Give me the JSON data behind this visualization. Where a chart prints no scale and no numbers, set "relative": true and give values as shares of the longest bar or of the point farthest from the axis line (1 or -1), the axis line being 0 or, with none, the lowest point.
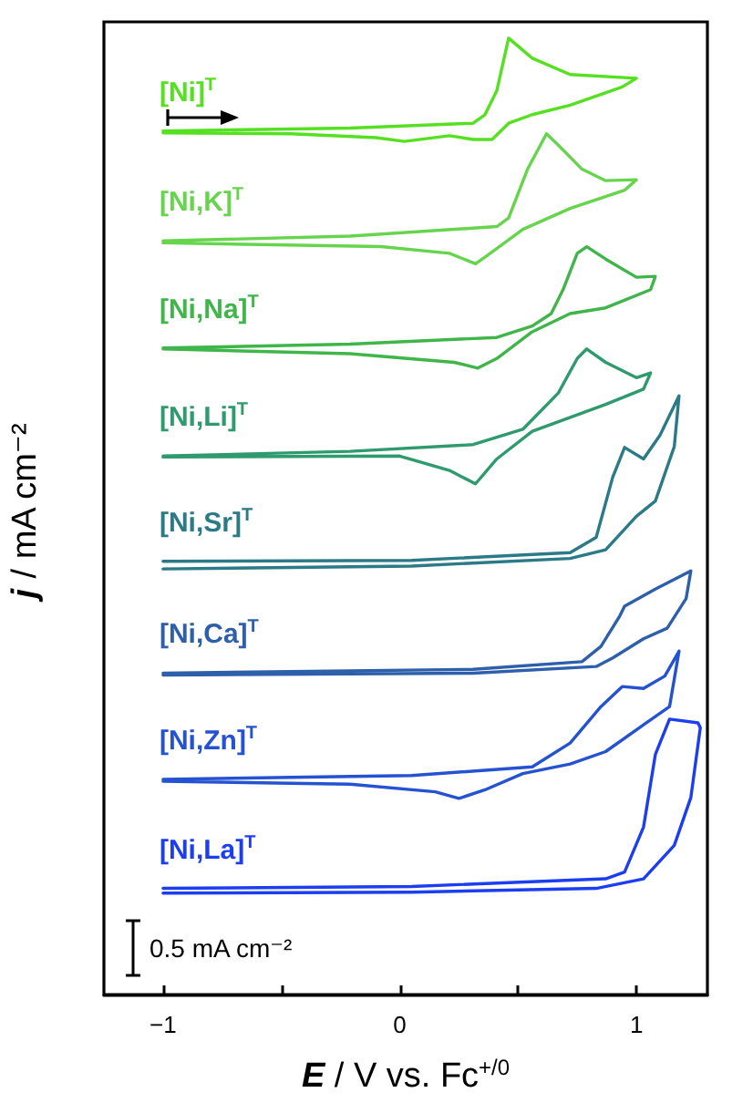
{
  "chart_data": {
    "type": "line",
    "relative": true,
    "xlabel": "E / V vs. Fc$^{+/0}$",
    "ylabel": "j / mA cm⁻²",
    "xlim": [
      -1.25,
      1.3
    ],
    "xticks": [
      -1,
      {
        "value": -0.5,
        "label": null
      },
      0,
      {
        "value": 0.5,
        "label": null
      },
      1
    ],
    "tick_labels": "x",
    "grid": false,
    "legend": false,
    "marker": "none",
    "annotations": [
      "0.5 mA cm⁻²"
    ],
    "series": [
      {
        "name": "[Ni]$^{T}$",
        "color": "#55e022",
        "x": [
          -1.0,
          -0.21,
          0.31,
          0.36,
          0.41,
          0.44,
          0.46,
          0.56,
          0.72,
          1.0,
          0.94,
          0.72,
          0.56,
          0.46,
          0.39,
          0.31,
          0.21,
          0.02,
          -0.1,
          -0.46,
          -1.0
        ],
        "values": [
          0.903,
          0.906,
          0.911,
          0.92,
          0.945,
          0.978,
          1.0,
          0.979,
          0.962,
          0.958,
          0.949,
          0.93,
          0.92,
          0.911,
          0.894,
          0.894,
          0.898,
          0.892,
          0.896,
          0.9,
          0.901
        ]
      },
      {
        "name": "[Ni,K]$^{T}$",
        "color": "#66d44c",
        "x": [
          -1.0,
          -0.21,
          0.41,
          0.46,
          0.54,
          0.62,
          0.67,
          0.77,
          0.87,
          1.0,
          0.95,
          0.72,
          0.52,
          0.36,
          0.32,
          0.21,
          -0.08,
          -1.0
        ],
        "values": [
          0.788,
          0.793,
          0.803,
          0.812,
          0.863,
          0.9,
          0.888,
          0.863,
          0.851,
          0.852,
          0.841,
          0.822,
          0.8,
          0.771,
          0.764,
          0.775,
          0.782,
          0.786
        ]
      },
      {
        "name": "[Ni,Na]$^{T}$",
        "color": "#3fb54a",
        "x": [
          -1.0,
          -0.21,
          0.41,
          0.56,
          0.64,
          0.69,
          0.75,
          0.79,
          0.87,
          1.0,
          1.08,
          1.06,
          0.87,
          0.72,
          0.56,
          0.41,
          0.33,
          0.23,
          -0.21,
          -1.0
        ],
        "values": [
          0.676,
          0.68,
          0.687,
          0.699,
          0.712,
          0.737,
          0.775,
          0.782,
          0.769,
          0.75,
          0.751,
          0.737,
          0.718,
          0.712,
          0.693,
          0.665,
          0.655,
          0.661,
          0.67,
          0.675
        ]
      },
      {
        "name": "[Ni,Li]$^{T}$",
        "color": "#2f9a6e",
        "x": [
          -1.0,
          -0.21,
          0.31,
          0.52,
          0.67,
          0.75,
          0.79,
          0.87,
          1.0,
          1.06,
          1.03,
          0.87,
          0.56,
          0.41,
          0.32,
          0.21,
          0.0,
          -1.0
        ],
        "values": [
          0.563,
          0.568,
          0.575,
          0.591,
          0.629,
          0.665,
          0.675,
          0.661,
          0.645,
          0.65,
          0.633,
          0.617,
          0.589,
          0.56,
          0.534,
          0.548,
          0.563,
          0.562
        ]
      },
      {
        "name": "[Ni,Sr]$^{T}$",
        "color": "#2b7a87",
        "x": [
          -1.0,
          0.05,
          0.72,
          0.83,
          0.9,
          0.95,
          1.03,
          1.1,
          1.18,
          1.16,
          1.08,
          1.0,
          0.87,
          0.72,
          0.05,
          -1.0
        ],
        "values": [
          0.453,
          0.454,
          0.462,
          0.478,
          0.541,
          0.572,
          0.56,
          0.585,
          0.626,
          0.573,
          0.516,
          0.5,
          0.465,
          0.456,
          0.448,
          0.445
        ]
      },
      {
        "name": "[Ni,Ca]$^{T}$",
        "color": "#2e5fab",
        "x": [
          -1.0,
          0.31,
          0.77,
          0.85,
          0.93,
          0.95,
          1.08,
          1.23,
          1.21,
          1.13,
          1.03,
          0.9,
          0.83,
          0.31,
          -1.0
        ],
        "values": [
          0.336,
          0.34,
          0.348,
          0.364,
          0.396,
          0.406,
          0.424,
          0.443,
          0.414,
          0.383,
          0.372,
          0.352,
          0.343,
          0.336,
          0.334
        ]
      },
      {
        "name": "[Ni,Zn]$^{T}$",
        "color": "#2552d0",
        "x": [
          -1.0,
          0.05,
          0.56,
          0.72,
          0.85,
          0.94,
          1.03,
          1.12,
          1.18,
          1.14,
          1.03,
          0.87,
          0.72,
          0.52,
          0.36,
          0.25,
          0.15,
          -0.21,
          -1.0
        ],
        "values": [
          0.225,
          0.229,
          0.238,
          0.263,
          0.301,
          0.322,
          0.32,
          0.333,
          0.359,
          0.301,
          0.282,
          0.254,
          0.241,
          0.231,
          0.214,
          0.205,
          0.212,
          0.22,
          0.223
        ]
      },
      {
        "name": "[Ni,La]$^{T}$",
        "color": "#1c3ef0",
        "x": [
          -1.0,
          0.05,
          0.87,
          0.95,
          1.03,
          1.08,
          1.14,
          1.26,
          1.27,
          1.23,
          1.16,
          1.03,
          0.83,
          0.05,
          -1.0
        ],
        "values": [
          0.111,
          0.113,
          0.121,
          0.128,
          0.175,
          0.251,
          0.288,
          0.284,
          0.279,
          0.206,
          0.156,
          0.121,
          0.111,
          0.107,
          0.106
        ]
      }
    ]
  }
}
